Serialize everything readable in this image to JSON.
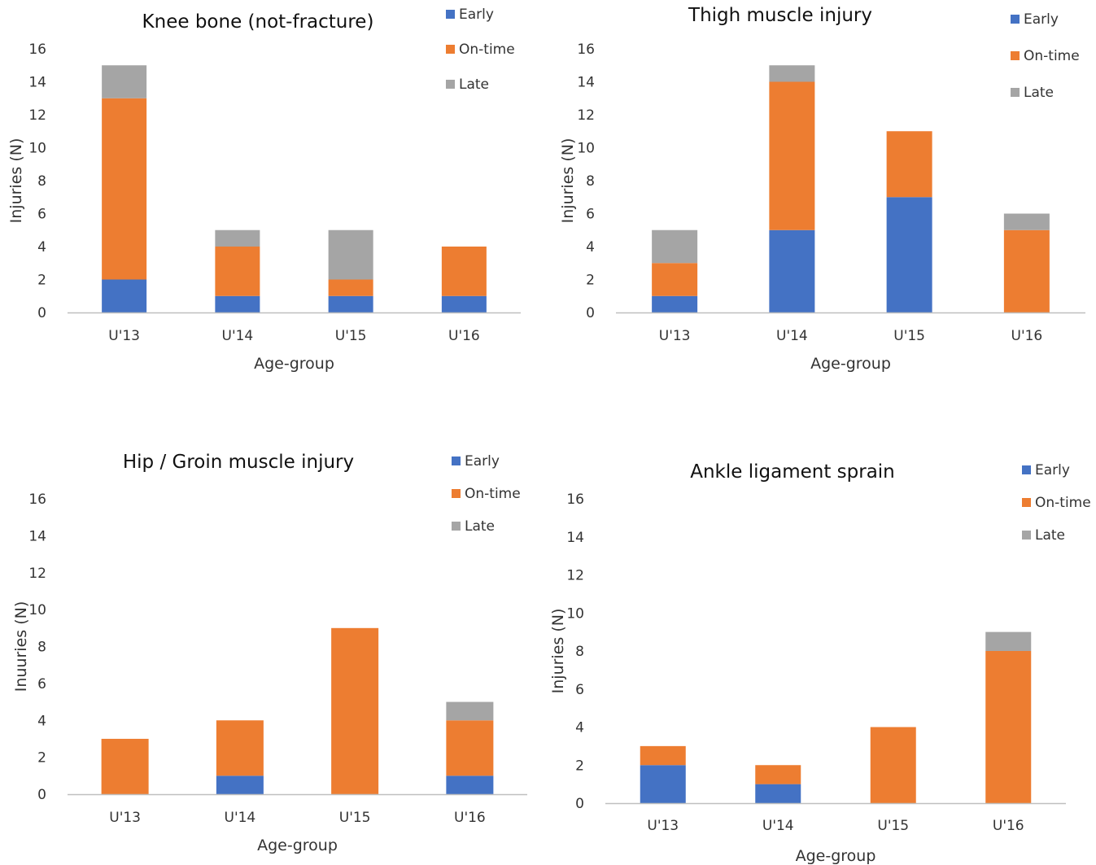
{
  "colors": {
    "Early": "#4472C4",
    "On-time": "#ED7D31",
    "Late": "#A5A5A5",
    "axis": "#BFBFBF"
  },
  "chart_data": [
    {
      "type": "bar",
      "stacked": true,
      "title": "Knee bone (not-fracture)",
      "xlabel": "Age-group",
      "ylabel": "Injuries (N)",
      "ylim": [
        0,
        16
      ],
      "yticks": [
        0,
        2,
        4,
        6,
        8,
        10,
        12,
        14,
        16
      ],
      "categories": [
        "U'13",
        "U'14",
        "U'15",
        "U'16"
      ],
      "legend_position": "top-right",
      "series": [
        {
          "name": "Early",
          "values": [
            2,
            1,
            1,
            1
          ]
        },
        {
          "name": "On-time",
          "values": [
            11,
            3,
            1,
            3
          ]
        },
        {
          "name": "Late",
          "values": [
            2,
            1,
            3,
            0
          ]
        }
      ]
    },
    {
      "type": "bar",
      "stacked": true,
      "title": "Thigh muscle injury",
      "xlabel": "Age-group",
      "ylabel": "Injuries (N)",
      "ylim": [
        0,
        16
      ],
      "yticks": [
        0,
        2,
        4,
        6,
        8,
        10,
        12,
        14,
        16
      ],
      "categories": [
        "U'13",
        "U'14",
        "U'15",
        "U'16"
      ],
      "legend_position": "top-right",
      "series": [
        {
          "name": "Early",
          "values": [
            1,
            5,
            7,
            0
          ]
        },
        {
          "name": "On-time",
          "values": [
            2,
            9,
            4,
            5
          ]
        },
        {
          "name": "Late",
          "values": [
            2,
            1,
            0,
            1
          ]
        }
      ]
    },
    {
      "type": "bar",
      "stacked": true,
      "title": "Hip / Groin muscle injury",
      "xlabel": "Age-group",
      "ylabel": "Inuuries (N)",
      "ylim": [
        0,
        16
      ],
      "yticks": [
        0,
        2,
        4,
        6,
        8,
        10,
        12,
        14,
        16
      ],
      "categories": [
        "U'13",
        "U'14",
        "U'15",
        "U'16"
      ],
      "legend_position": "top-right",
      "series": [
        {
          "name": "Early",
          "values": [
            0,
            1,
            0,
            1
          ]
        },
        {
          "name": "On-time",
          "values": [
            3,
            3,
            9,
            3
          ]
        },
        {
          "name": "Late",
          "values": [
            0,
            0,
            0,
            1
          ]
        }
      ]
    },
    {
      "type": "bar",
      "stacked": true,
      "title": "Ankle ligament sprain",
      "xlabel": "Age-group",
      "ylabel": "Injuries (N)",
      "ylim": [
        0,
        16
      ],
      "yticks": [
        0,
        2,
        4,
        6,
        8,
        10,
        12,
        14,
        16
      ],
      "categories": [
        "U'13",
        "U'14",
        "U'15",
        "U'16"
      ],
      "legend_position": "top-right",
      "series": [
        {
          "name": "Early",
          "values": [
            2,
            1,
            0,
            0
          ]
        },
        {
          "name": "On-time",
          "values": [
            1,
            1,
            4,
            8
          ]
        },
        {
          "name": "Late",
          "values": [
            0,
            0,
            0,
            1
          ]
        }
      ]
    }
  ]
}
